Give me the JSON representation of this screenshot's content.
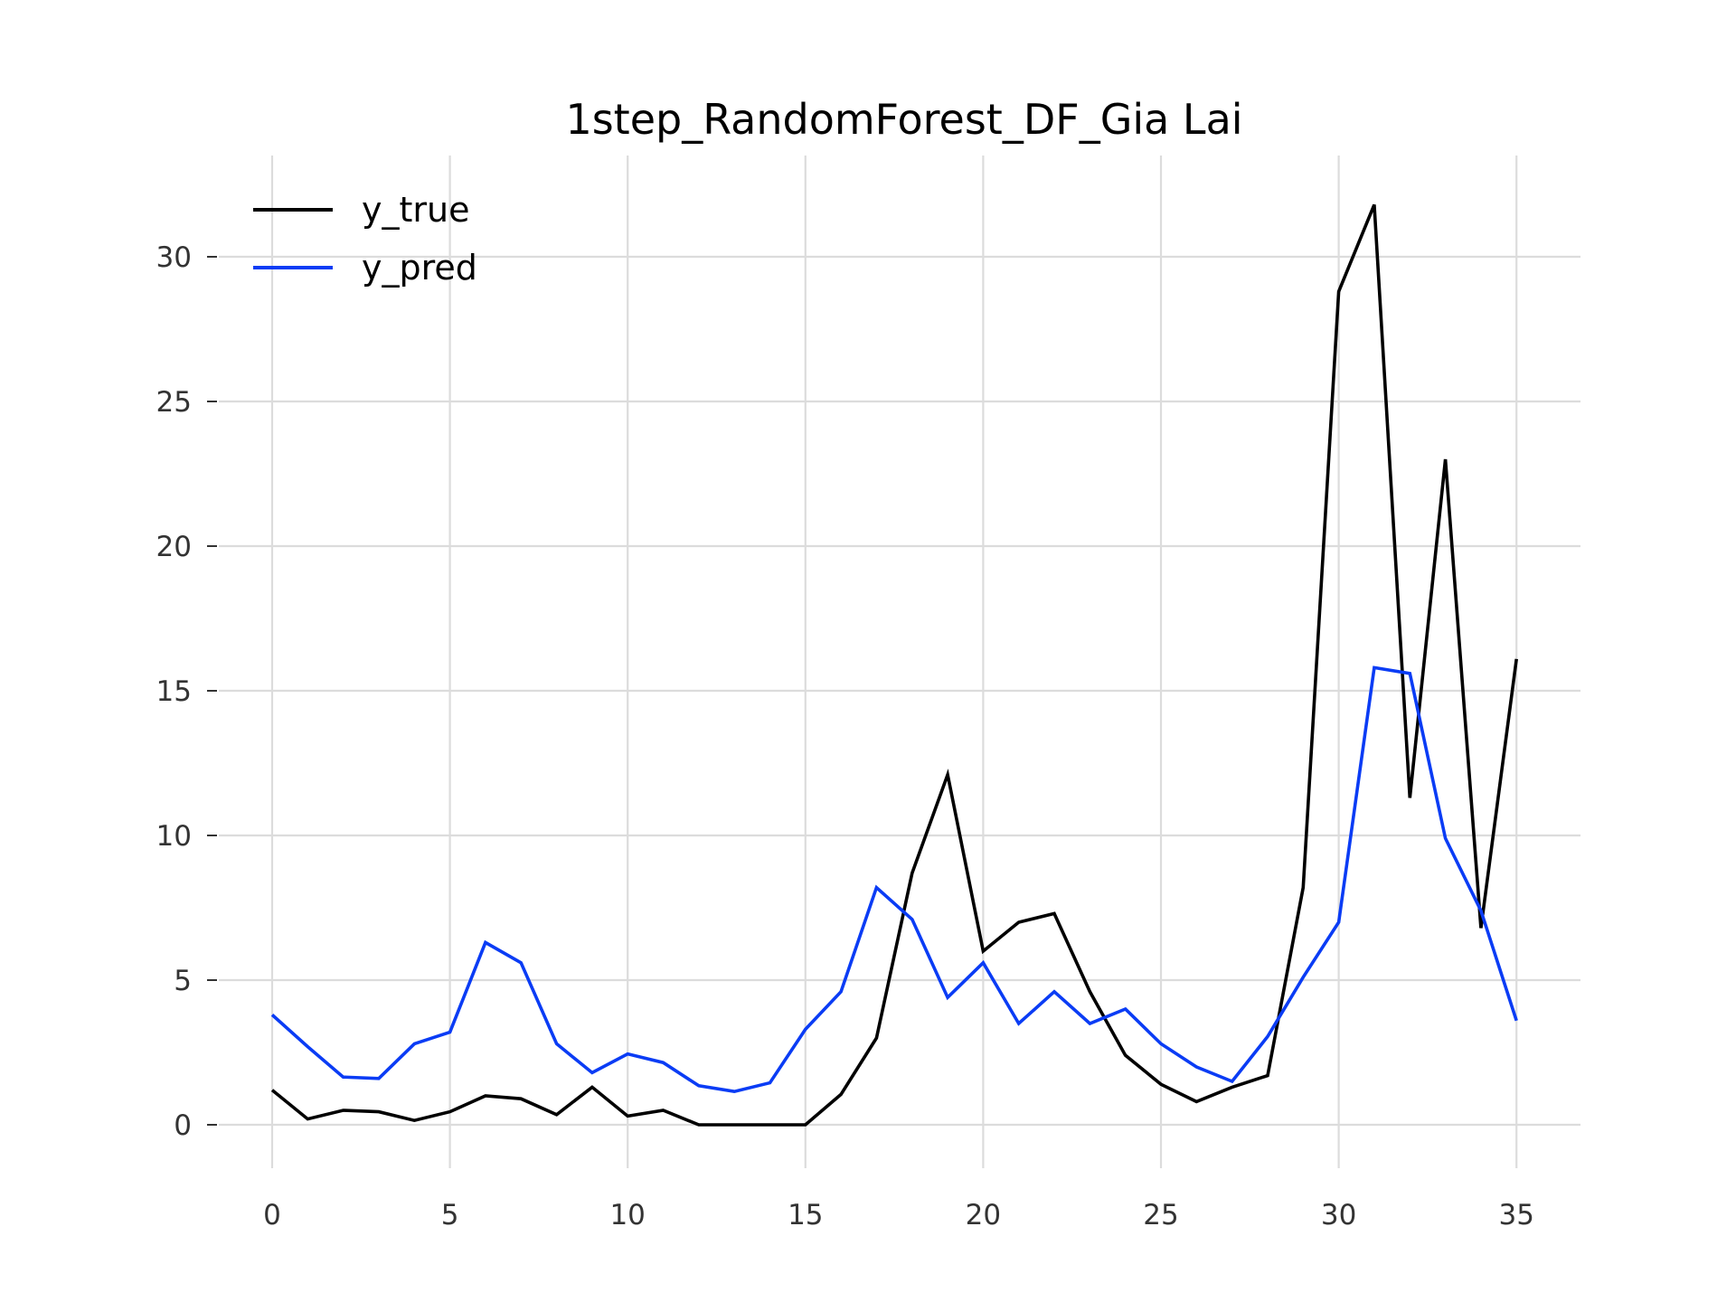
{
  "chart_data": {
    "type": "line",
    "title": "1step_RandomForest_DF_Gia Lai",
    "xlabel": "",
    "ylabel": "",
    "xlim": [
      -1.5,
      36.8
    ],
    "ylim": [
      -1.5,
      33.5
    ],
    "x_ticks": [
      0,
      5,
      10,
      15,
      20,
      25,
      30,
      35
    ],
    "y_ticks": [
      0,
      5,
      10,
      15,
      20,
      25,
      30
    ],
    "grid": true,
    "legend_position": "top-left",
    "x": [
      0,
      1,
      2,
      3,
      4,
      5,
      6,
      7,
      8,
      9,
      10,
      11,
      12,
      13,
      14,
      15,
      16,
      17,
      18,
      19,
      20,
      21,
      22,
      23,
      24,
      25,
      26,
      27,
      28,
      29,
      30,
      31,
      32,
      33,
      34,
      35
    ],
    "series": [
      {
        "name": "y_true",
        "color": "#000000",
        "values": [
          1.2,
          0.2,
          0.5,
          0.45,
          0.15,
          0.45,
          1.0,
          0.9,
          0.35,
          1.3,
          0.3,
          0.5,
          0.0,
          0.0,
          0.0,
          0.0,
          1.05,
          3.0,
          8.7,
          12.1,
          6.0,
          7.0,
          7.3,
          4.6,
          2.4,
          1.4,
          0.8,
          1.3,
          1.7,
          8.2,
          28.8,
          31.8,
          11.3,
          23.0,
          6.8,
          16.1
        ]
      },
      {
        "name": "y_pred",
        "color": "#0a3cf5",
        "values": [
          3.8,
          2.7,
          1.65,
          1.6,
          2.8,
          3.2,
          6.3,
          5.6,
          2.8,
          1.8,
          2.45,
          2.15,
          1.35,
          1.15,
          1.45,
          3.3,
          4.6,
          8.2,
          7.1,
          4.4,
          5.6,
          3.5,
          4.6,
          3.5,
          4.0,
          2.8,
          2.0,
          1.5,
          3.05,
          5.1,
          7.0,
          15.8,
          15.6,
          9.9,
          7.4,
          3.6
        ]
      }
    ]
  }
}
